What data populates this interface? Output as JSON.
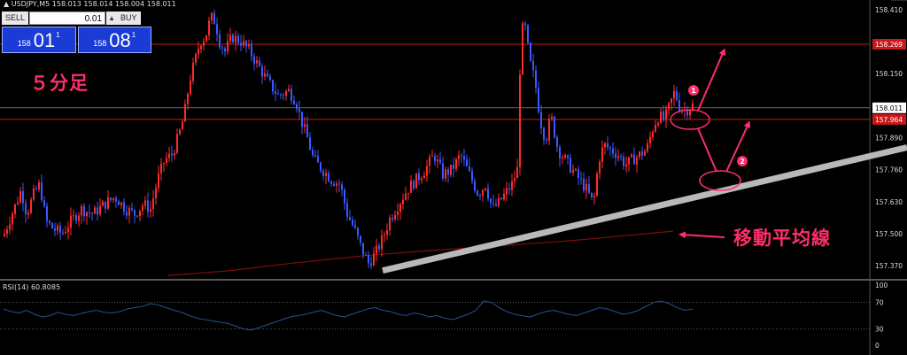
{
  "header": {
    "text": "USDJPY,M5  158.013 158.014 158.004 158.011"
  },
  "trade_panel": {
    "sell_label": "SELL",
    "buy_label": "BUY",
    "lot_value": "0.01",
    "up_arrow": "▲",
    "down_arrow": "▼",
    "sell_prefix": "158",
    "sell_big": "01",
    "sell_sup": "1",
    "buy_prefix": "158",
    "buy_big": "08",
    "buy_sup": "1"
  },
  "annotations": {
    "timeframe": "５分足",
    "moving_average": "移動平均線",
    "marker1": "1",
    "marker2": "2"
  },
  "colors": {
    "background": "#000000",
    "bull": "#ff2b2b",
    "bear": "#3b59ff",
    "ma": "#7a1010",
    "trendline": "#b9b9b9",
    "annotation": "#ff2e6a",
    "rsi_line": "#27508f",
    "hline": "#c81818",
    "current_line": "#888888"
  },
  "chart_data": [
    {
      "type": "candlestick",
      "title": "USDJPY,M5",
      "ylim": [
        157.32,
        158.42
      ],
      "price_ticks": [
        158.41,
        158.28,
        158.15,
        158.011,
        157.89,
        157.76,
        157.63,
        157.5,
        157.37
      ],
      "tick_labels": [
        "158.410",
        "158.280",
        "158.150",
        "158.011",
        "157.890",
        "157.760",
        "157.630",
        "157.500",
        "157.370"
      ],
      "hline_resistance": {
        "value": 158.269,
        "label": "158.269"
      },
      "hline_support": {
        "value": 157.964,
        "label": "157.964"
      },
      "current_price": {
        "value": 158.011,
        "label": "158.011"
      },
      "close_path": [
        [
          0,
          157.45
        ],
        [
          10,
          157.55
        ],
        [
          18,
          157.62
        ],
        [
          24,
          157.68
        ],
        [
          30,
          157.58
        ],
        [
          38,
          157.66
        ],
        [
          45,
          157.7
        ],
        [
          52,
          157.55
        ],
        [
          60,
          157.52
        ],
        [
          70,
          157.5
        ],
        [
          80,
          157.55
        ],
        [
          92,
          157.6
        ],
        [
          105,
          157.58
        ],
        [
          118,
          157.62
        ],
        [
          130,
          157.65
        ],
        [
          142,
          157.6
        ],
        [
          152,
          157.58
        ],
        [
          162,
          157.62
        ],
        [
          170,
          157.6
        ],
        [
          178,
          157.72
        ],
        [
          186,
          157.8
        ],
        [
          194,
          157.82
        ],
        [
          202,
          157.9
        ],
        [
          208,
          157.98
        ],
        [
          214,
          158.12
        ],
        [
          220,
          158.2
        ],
        [
          226,
          158.28
        ],
        [
          232,
          158.3
        ],
        [
          238,
          158.38
        ],
        [
          243,
          158.36
        ],
        [
          248,
          158.28
        ],
        [
          254,
          158.24
        ],
        [
          262,
          158.3
        ],
        [
          272,
          158.28
        ],
        [
          282,
          158.24
        ],
        [
          292,
          158.18
        ],
        [
          302,
          158.12
        ],
        [
          314,
          158.06
        ],
        [
          326,
          158.08
        ],
        [
          334,
          158.04
        ],
        [
          340,
          157.96
        ],
        [
          346,
          157.9
        ],
        [
          354,
          157.8
        ],
        [
          364,
          157.76
        ],
        [
          374,
          157.72
        ],
        [
          384,
          157.7
        ],
        [
          392,
          157.58
        ],
        [
          400,
          157.52
        ],
        [
          408,
          157.44
        ],
        [
          416,
          157.38
        ],
        [
          424,
          157.42
        ],
        [
          432,
          157.48
        ],
        [
          440,
          157.56
        ],
        [
          450,
          157.62
        ],
        [
          460,
          157.68
        ],
        [
          470,
          157.72
        ],
        [
          480,
          157.76
        ],
        [
          490,
          157.82
        ],
        [
          500,
          157.74
        ],
        [
          510,
          157.76
        ],
        [
          520,
          157.82
        ],
        [
          530,
          157.74
        ],
        [
          540,
          157.66
        ],
        [
          548,
          157.7
        ],
        [
          556,
          157.6
        ],
        [
          562,
          157.62
        ],
        [
          570,
          157.66
        ],
        [
          578,
          157.7
        ],
        [
          584,
          157.76
        ],
        [
          588,
          158.3
        ],
        [
          592,
          158.36
        ],
        [
          598,
          158.2
        ],
        [
          604,
          158.12
        ],
        [
          610,
          157.96
        ],
        [
          616,
          157.88
        ],
        [
          622,
          157.98
        ],
        [
          630,
          157.84
        ],
        [
          638,
          157.8
        ],
        [
          646,
          157.76
        ],
        [
          654,
          157.72
        ],
        [
          662,
          157.68
        ],
        [
          670,
          157.62
        ],
        [
          676,
          157.8
        ],
        [
          682,
          157.86
        ],
        [
          690,
          157.84
        ],
        [
          698,
          157.82
        ],
        [
          706,
          157.78
        ],
        [
          714,
          157.8
        ],
        [
          722,
          157.82
        ],
        [
          730,
          157.84
        ],
        [
          738,
          157.94
        ],
        [
          744,
          157.98
        ],
        [
          750,
          157.96
        ],
        [
          756,
          158.02
        ],
        [
          762,
          158.08
        ],
        [
          766,
          158.02
        ],
        [
          774,
          158.0
        ],
        [
          782,
          158.02
        ]
      ],
      "moving_average": [
        [
          190,
          157.33
        ],
        [
          260,
          157.35
        ],
        [
          330,
          157.38
        ],
        [
          410,
          157.41
        ],
        [
          480,
          157.43
        ],
        [
          560,
          157.45
        ],
        [
          640,
          157.47
        ],
        [
          700,
          157.49
        ],
        [
          760,
          157.51
        ]
      ],
      "trendline": {
        "from": [
          432,
          157.35
        ],
        "to": [
          1024,
          157.85
        ]
      }
    },
    {
      "type": "line",
      "title": "RSI(14) 60.8085",
      "ylim": [
        0,
        100
      ],
      "levels": [
        70,
        30
      ],
      "tick_labels": [
        "100",
        "70",
        "30",
        "0"
      ],
      "values": [
        60,
        56,
        54,
        58,
        52,
        48,
        50,
        55,
        52,
        50,
        53,
        56,
        58,
        55,
        54,
        56,
        60,
        62,
        64,
        68,
        66,
        62,
        58,
        55,
        50,
        46,
        44,
        42,
        40,
        38,
        34,
        30,
        28,
        32,
        36,
        40,
        44,
        48,
        50,
        52,
        55,
        58,
        54,
        50,
        48,
        52,
        56,
        60,
        62,
        58,
        56,
        52,
        50,
        54,
        52,
        48,
        50,
        46,
        44,
        48,
        52,
        58,
        72,
        70,
        62,
        56,
        52,
        50,
        48,
        52,
        56,
        58,
        55,
        52,
        50,
        54,
        58,
        62,
        60,
        56,
        52,
        54,
        58,
        64,
        70,
        72,
        68,
        62,
        58,
        60
      ]
    }
  ]
}
